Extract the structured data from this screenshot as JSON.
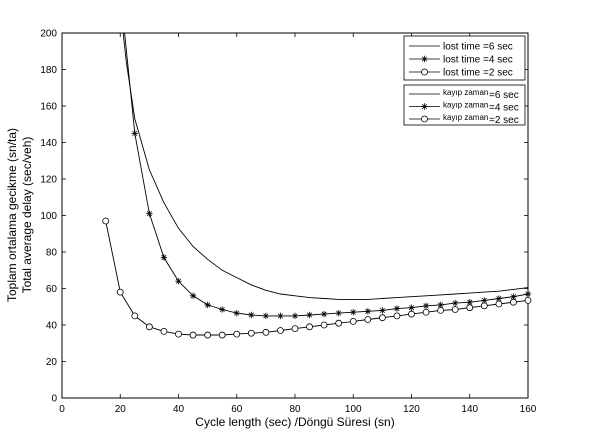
{
  "chart_data": {
    "type": "line",
    "xlim": [
      0,
      160
    ],
    "ylim": [
      0,
      200
    ],
    "xticks": [
      0,
      20,
      40,
      60,
      80,
      100,
      120,
      140,
      160
    ],
    "yticks": [
      0,
      20,
      40,
      60,
      80,
      100,
      120,
      140,
      160,
      180,
      200
    ],
    "xlabel": "Cycle length (sec) /Döngü Süresi (sn)",
    "ylabel": "Total average delay (sec/veh)",
    "ylabel2": "Toplam ortalama gecikme (sn/ta)",
    "grid": false,
    "legend_position": "top-right",
    "series": [
      {
        "name": "lost time =6 sec",
        "marker": "none",
        "x": [
          21,
          22,
          25,
          30,
          35,
          40,
          45,
          50,
          55,
          60,
          65,
          70,
          75,
          80,
          85,
          90,
          95,
          100,
          105,
          110,
          115,
          120,
          125,
          130,
          135,
          140,
          145,
          150,
          155,
          160
        ],
        "y": [
          200,
          185,
          153,
          125,
          107,
          93,
          83,
          76,
          70,
          66,
          62,
          59,
          57,
          56,
          55,
          54.5,
          54,
          54,
          54,
          54.5,
          55,
          55.5,
          56,
          56.5,
          57,
          57.5,
          58,
          58.5,
          59.5,
          60.5
        ]
      },
      {
        "name": "lost time =4 sec",
        "marker": "star",
        "x": [
          21.5,
          25,
          30,
          35,
          40,
          45,
          50,
          55,
          60,
          65,
          70,
          75,
          80,
          85,
          90,
          95,
          100,
          105,
          110,
          115,
          120,
          125,
          130,
          135,
          140,
          145,
          150,
          155,
          160
        ],
        "y": [
          200,
          145,
          101,
          77,
          64,
          56,
          51,
          48.5,
          46.5,
          45.5,
          45,
          45,
          45,
          45.5,
          46,
          46.5,
          47,
          47.5,
          48,
          49,
          49.5,
          50.5,
          51,
          52,
          52.5,
          53.5,
          54.5,
          55.5,
          57
        ]
      },
      {
        "name": "lost time =2 sec",
        "marker": "circle",
        "x": [
          15,
          20,
          25,
          30,
          35,
          40,
          45,
          50,
          55,
          60,
          65,
          70,
          75,
          80,
          85,
          90,
          95,
          100,
          105,
          110,
          115,
          120,
          125,
          130,
          135,
          140,
          145,
          150,
          155,
          160
        ],
        "y": [
          97,
          58,
          45,
          39,
          36.5,
          35,
          34.5,
          34.5,
          34.5,
          35,
          35.5,
          36,
          37,
          38,
          39,
          40,
          41,
          42,
          43,
          44,
          45,
          46,
          47,
          48,
          48.5,
          49.5,
          50.5,
          51.5,
          52.5,
          53.5
        ]
      }
    ]
  },
  "legend_top": [
    {
      "label": "lost time =6 sec",
      "marker": "none"
    },
    {
      "label": "lost time =4 sec",
      "marker": "star"
    },
    {
      "label": "lost time =2 sec",
      "marker": "circle"
    }
  ],
  "legend_bottom": [
    {
      "label_a": "kayıp zaman",
      "label_b": "=6 sec",
      "marker": "none"
    },
    {
      "label_a": "kayıp zaman",
      "label_b": "=4 sec",
      "marker": "star"
    },
    {
      "label_a": "kayıp zaman",
      "label_b": "=2 sec",
      "marker": "circle"
    }
  ]
}
